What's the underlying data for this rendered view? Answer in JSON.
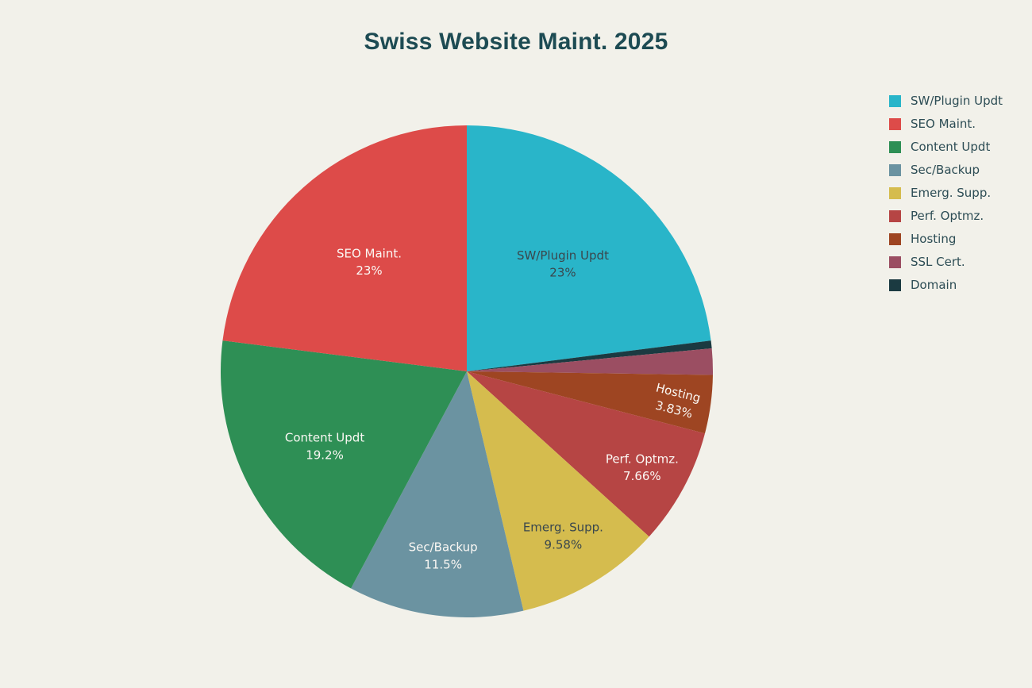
{
  "title": "Swiss Website Maint. 2025",
  "chart_data": {
    "type": "pie",
    "title": "Swiss Website Maint. 2025",
    "legend_position": "right",
    "background_color": "#f2f1ea",
    "title_color": "#1d4b53",
    "legend_text_color": "#2d4d55",
    "start_angle": 90,
    "direction": "clockwise",
    "draw_order": [
      "sw-plugin-updt",
      "domain",
      "ssl-cert",
      "hosting",
      "perf-optmz",
      "emerg-supp",
      "sec-backup",
      "content-updt",
      "seo-maint"
    ],
    "slices": [
      {
        "id": "sw-plugin-updt",
        "label": "SW/Plugin Updt",
        "value": 23,
        "pct_label": "23%",
        "color": "#29b5c9",
        "text_color": "#3a474d",
        "label_r": 0.59
      },
      {
        "id": "seo-maint",
        "label": "SEO Maint.",
        "value": 23,
        "pct_label": "23%",
        "color": "#dd4b49",
        "text_color": "#fbf8f4",
        "label_r": 0.6
      },
      {
        "id": "content-updt",
        "label": "Content Updt",
        "value": 19.2,
        "pct_label": "19.2%",
        "color": "#2e8f55",
        "text_color": "#fbf8f4",
        "label_r": 0.65
      },
      {
        "id": "sec-backup",
        "label": "Sec/Backup",
        "value": 11.5,
        "pct_label": "11.5%",
        "color": "#6b93a1",
        "text_color": "#fbf8f4",
        "label_r": 0.75
      },
      {
        "id": "emerg-supp",
        "label": "Emerg. Supp.",
        "value": 9.58,
        "pct_label": "9.58%",
        "color": "#d5bc4e",
        "text_color": "#3a474d",
        "label_r": 0.77
      },
      {
        "id": "perf-optmz",
        "label": "Perf. Optmz.",
        "value": 7.66,
        "pct_label": "7.66%",
        "color": "#b64544",
        "text_color": "#fbf8f4",
        "label_r": 0.81
      },
      {
        "id": "hosting",
        "label": "Hosting",
        "value": 3.83,
        "pct_label": "3.83%",
        "color": "#9e4522",
        "text_color": "#fbf8f4",
        "label_r": 0.86,
        "label_rotation": 14
      },
      {
        "id": "ssl-cert",
        "label": "SSL Cert.",
        "value": 1.72,
        "pct_label": null,
        "color": "#9b4e62",
        "text_color": "#fbf8f4"
      },
      {
        "id": "domain",
        "label": "Domain",
        "value": 0.51,
        "pct_label": null,
        "color": "#1b3a41",
        "text_color": "#fbf8f4"
      }
    ]
  }
}
